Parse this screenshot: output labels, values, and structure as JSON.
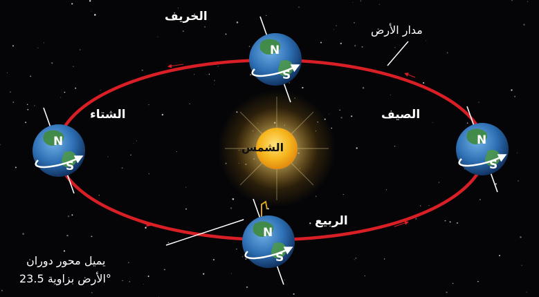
{
  "labels": {
    "sun": "الشمس",
    "orbit": "مدار الأرض",
    "autumn": "الخريف",
    "summer": "الصيف",
    "winter": "الشتاء",
    "spring": "الربيع",
    "tilt_line1": "يميل محور دوران",
    "tilt_line2": "الأرض بزاوية 23.5°"
  },
  "poles": {
    "north": "N",
    "south": "S"
  },
  "colors": {
    "background": "#050507",
    "orbit": "#d81f26",
    "sun": "#f6b51d",
    "ocean": "#2d6fb3",
    "land": "#3f8a3c",
    "text": "#ffffff"
  }
}
